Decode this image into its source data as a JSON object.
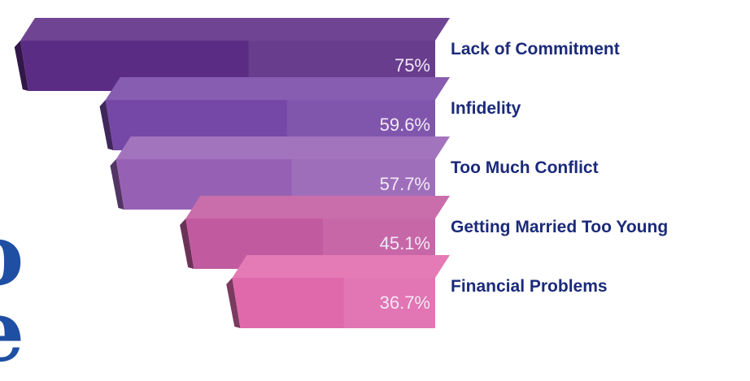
{
  "chart_data": {
    "type": "bar",
    "orientation": "horizontal",
    "style": "3d",
    "categories": [
      "Lack of Commitment",
      "Infidelity",
      "Too Much Conflict",
      "Getting Married Too Young",
      "Financial Problems"
    ],
    "values": [
      75,
      59.6,
      57.7,
      45.1,
      36.7
    ],
    "value_labels": [
      "75%",
      "59.6%",
      "57.7%",
      "45.1%",
      "36.7%"
    ],
    "colors": [
      "#5b2c84",
      "#7547a6",
      "#9661b5",
      "#c25aa0",
      "#e069ac"
    ],
    "title": "",
    "xlabel": "",
    "ylabel": ""
  },
  "cut_off_text": [
    "o",
    "e"
  ]
}
